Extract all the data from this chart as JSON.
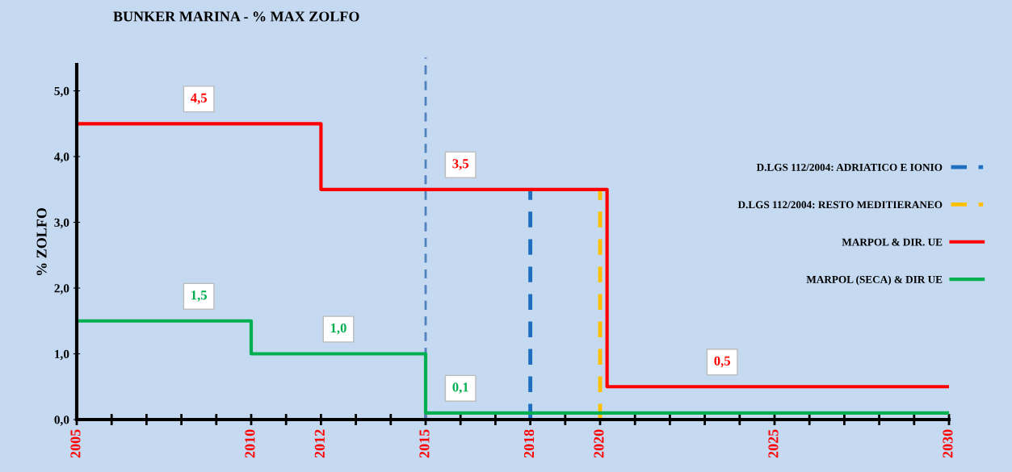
{
  "chart_data": {
    "type": "step",
    "title": "BUNKER MARINA - % MAX ZOLFO",
    "ylabel": "% ZOLFO",
    "xlim": [
      2005,
      2030
    ],
    "ylim": [
      0,
      5.4
    ],
    "xticks": [
      {
        "value": 2005,
        "label": "2005"
      },
      {
        "value": 2006,
        "label": null
      },
      {
        "value": 2007,
        "label": null
      },
      {
        "value": 2008,
        "label": null
      },
      {
        "value": 2009,
        "label": null
      },
      {
        "value": 2010,
        "label": "2010"
      },
      {
        "value": 2011,
        "label": null
      },
      {
        "value": 2012,
        "label": "2012"
      },
      {
        "value": 2013,
        "label": null
      },
      {
        "value": 2014,
        "label": null
      },
      {
        "value": 2015,
        "label": "2015"
      },
      {
        "value": 2016,
        "label": null
      },
      {
        "value": 2017,
        "label": null
      },
      {
        "value": 2018,
        "label": "2018"
      },
      {
        "value": 2019,
        "label": null
      },
      {
        "value": 2020,
        "label": "2020"
      },
      {
        "value": 2021,
        "label": null
      },
      {
        "value": 2022,
        "label": null
      },
      {
        "value": 2023,
        "label": null
      },
      {
        "value": 2024,
        "label": null
      },
      {
        "value": 2025,
        "label": "2025"
      },
      {
        "value": 2026,
        "label": null
      },
      {
        "value": 2027,
        "label": null
      },
      {
        "value": 2028,
        "label": null
      },
      {
        "value": 2029,
        "label": null
      },
      {
        "value": 2030,
        "label": "2030"
      }
    ],
    "yticks": [
      {
        "value": 0,
        "label": "0,0"
      },
      {
        "value": 1,
        "label": "1,0"
      },
      {
        "value": 2,
        "label": "2,0"
      },
      {
        "value": 3,
        "label": "3,0"
      },
      {
        "value": 4,
        "label": "4,0"
      },
      {
        "value": 5,
        "label": "5,0"
      }
    ],
    "series": [
      {
        "name": "D.LGS 112/2004: ADRIATICO E IONIO",
        "type": "line",
        "line_style": "dashed",
        "color": "#1f6fc0",
        "x": [
          2018,
          2018
        ],
        "values": [
          0,
          3.5
        ]
      },
      {
        "name": "D.LGS 112/2004: RESTO MEDITIERANEO",
        "type": "line",
        "line_style": "dashed",
        "color": "#ffc000",
        "x": [
          2020,
          2020
        ],
        "values": [
          0,
          3.5
        ]
      },
      {
        "name": "MARPOL & DIR. UE",
        "line_style": "solid",
        "color": "#ff0000",
        "x": [
          2005,
          2012,
          2020.2,
          2030
        ],
        "values": [
          4.5,
          3.5,
          0.5,
          0.5
        ]
      },
      {
        "name": "MARPOL (SECA) & DIR UE",
        "line_style": "solid",
        "color": "#00b050",
        "x": [
          2005,
          2010,
          2015,
          2030
        ],
        "values": [
          1.5,
          1.0,
          0.1,
          0.1
        ]
      }
    ],
    "annotations": [
      {
        "text": "4,5",
        "x": 2008.5,
        "y": 4.5
      },
      {
        "text": "3,5",
        "x": 2016,
        "y": 3.5
      },
      {
        "text": "0,5",
        "x": 2023.5,
        "y": 0.5
      },
      {
        "text": "1,5",
        "x": 2008.5,
        "y": 1.5
      },
      {
        "text": "1,0",
        "x": 2012.5,
        "y": 1.0
      },
      {
        "text": "0,1",
        "x": 2016,
        "y": 0.1
      }
    ],
    "ref_lines": [
      {
        "axis": "x",
        "value": 2015,
        "color": "#4f81bd",
        "line_style": "dashed"
      }
    ],
    "grid": false,
    "legend": "right"
  }
}
